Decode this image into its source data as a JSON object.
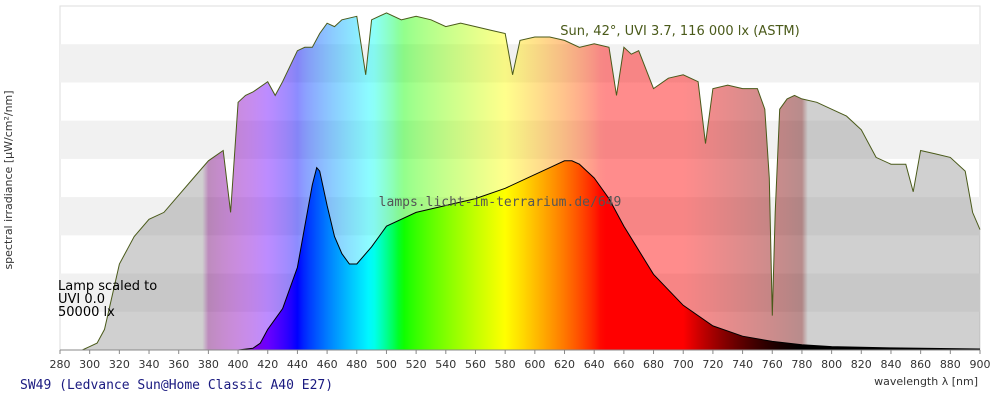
{
  "chart_data": {
    "type": "area",
    "title": "",
    "xlabel": "wavelength λ [nm]",
    "ylabel": "spectral irradiance [µW/cm²/nm]",
    "xlim": [
      280,
      900
    ],
    "ylim": [
      0,
      1
    ],
    "x_ticks": [
      280,
      300,
      320,
      340,
      360,
      380,
      400,
      420,
      440,
      460,
      480,
      500,
      520,
      540,
      560,
      580,
      600,
      620,
      640,
      660,
      680,
      700,
      720,
      740,
      760,
      780,
      800,
      820,
      840,
      860,
      880,
      900
    ],
    "grid": "horizontal bands",
    "legend": "none",
    "watermark": "lamps.licht-im-terrarium.de/649",
    "footer": "SW49 (Ledvance Sun@Home Classic A40 E27)",
    "annotations": [
      {
        "id": "sun_label",
        "text": "Sun, 42°, UVI 3.7, 116 000 lx (ASTM)",
        "placement": "top-right"
      },
      {
        "id": "lamp_label",
        "lines": [
          "Lamp scaled to",
          "UVI 0.0",
          "50000 lx"
        ],
        "placement": "left"
      }
    ],
    "series": [
      {
        "name": "Sun, 42°, UVI 3.7, 116 000 lx (ASTM)",
        "x": [
          295,
          300,
          305,
          310,
          320,
          330,
          340,
          350,
          360,
          370,
          380,
          390,
          395,
          400,
          405,
          410,
          420,
          425,
          430,
          440,
          445,
          450,
          455,
          460,
          465,
          470,
          480,
          486,
          490,
          500,
          510,
          520,
          530,
          540,
          550,
          560,
          570,
          580,
          585,
          590,
          600,
          610,
          620,
          630,
          640,
          650,
          655,
          660,
          665,
          670,
          680,
          690,
          700,
          710,
          715,
          720,
          730,
          740,
          750,
          755,
          758,
          760,
          762,
          765,
          770,
          775,
          780,
          790,
          800,
          810,
          820,
          830,
          840,
          850,
          855,
          860,
          870,
          880,
          890,
          895,
          900
        ],
        "y": [
          0.0,
          0.01,
          0.02,
          0.06,
          0.25,
          0.33,
          0.38,
          0.4,
          0.45,
          0.5,
          0.55,
          0.58,
          0.4,
          0.72,
          0.74,
          0.75,
          0.78,
          0.74,
          0.78,
          0.87,
          0.88,
          0.88,
          0.92,
          0.95,
          0.94,
          0.96,
          0.97,
          0.8,
          0.96,
          0.98,
          0.96,
          0.97,
          0.96,
          0.94,
          0.95,
          0.94,
          0.93,
          0.92,
          0.8,
          0.9,
          0.91,
          0.91,
          0.9,
          0.88,
          0.89,
          0.88,
          0.74,
          0.88,
          0.86,
          0.87,
          0.76,
          0.79,
          0.8,
          0.78,
          0.6,
          0.76,
          0.77,
          0.76,
          0.76,
          0.7,
          0.5,
          0.1,
          0.4,
          0.7,
          0.73,
          0.74,
          0.73,
          0.72,
          0.7,
          0.68,
          0.64,
          0.56,
          0.54,
          0.54,
          0.46,
          0.58,
          0.57,
          0.56,
          0.52,
          0.4,
          0.35
        ]
      },
      {
        "name": "Lamp scaled to UVI 0.0 50000 lx",
        "x": [
          400,
          410,
          415,
          420,
          430,
          440,
          445,
          450,
          453,
          455,
          460,
          465,
          470,
          475,
          480,
          490,
          500,
          520,
          540,
          560,
          580,
          600,
          610,
          620,
          625,
          630,
          640,
          650,
          660,
          680,
          700,
          720,
          740,
          760,
          780,
          800,
          820,
          840,
          860,
          880,
          900
        ],
        "y": [
          0.0,
          0.005,
          0.02,
          0.06,
          0.12,
          0.24,
          0.36,
          0.48,
          0.53,
          0.52,
          0.42,
          0.33,
          0.28,
          0.25,
          0.25,
          0.3,
          0.36,
          0.4,
          0.42,
          0.44,
          0.47,
          0.51,
          0.53,
          0.55,
          0.55,
          0.54,
          0.5,
          0.44,
          0.36,
          0.22,
          0.13,
          0.07,
          0.04,
          0.025,
          0.015,
          0.01,
          0.008,
          0.006,
          0.005,
          0.004,
          0.003
        ]
      }
    ]
  }
}
